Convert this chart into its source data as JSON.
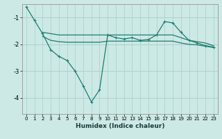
{
  "xlabel": "Humidex (Indice chaleur)",
  "background_color": "#cce9e5",
  "grid_color": "#aad4cf",
  "line_color": "#1e7b6e",
  "xlim": [
    -0.5,
    23.5
  ],
  "ylim": [
    -4.6,
    -0.5
  ],
  "yticks": [
    -4,
    -3,
    -2,
    -1
  ],
  "xticks": [
    0,
    1,
    2,
    3,
    4,
    5,
    6,
    7,
    8,
    9,
    10,
    11,
    12,
    13,
    14,
    15,
    16,
    17,
    18,
    19,
    20,
    21,
    22,
    23
  ],
  "line1_x": [
    0,
    1,
    2,
    3,
    4,
    5,
    6,
    7,
    8,
    9,
    10,
    11,
    12,
    13,
    14,
    15,
    16,
    17,
    18,
    19,
    20,
    21,
    22,
    23
  ],
  "line1_y": [
    -0.6,
    -1.1,
    -1.6,
    -2.2,
    -2.45,
    -2.6,
    -3.0,
    -3.55,
    -4.15,
    -3.7,
    -1.65,
    -1.75,
    -1.8,
    -1.75,
    -1.85,
    -1.82,
    -1.65,
    -1.15,
    -1.2,
    -1.55,
    -1.85,
    -1.95,
    -2.05,
    -2.1
  ],
  "line2_x": [
    2,
    3,
    4,
    5,
    6,
    7,
    8,
    9,
    10,
    11,
    12,
    13,
    14,
    15,
    16,
    17,
    18,
    19,
    20,
    21,
    22,
    23
  ],
  "line2_y": [
    -1.55,
    -1.6,
    -1.65,
    -1.65,
    -1.65,
    -1.65,
    -1.65,
    -1.65,
    -1.65,
    -1.65,
    -1.65,
    -1.65,
    -1.65,
    -1.65,
    -1.65,
    -1.65,
    -1.65,
    -1.75,
    -1.85,
    -1.9,
    -1.95,
    -2.05
  ],
  "line3_x": [
    2,
    3,
    4,
    5,
    6,
    7,
    8,
    9,
    10,
    11,
    12,
    13,
    14,
    15,
    16,
    17,
    18,
    19,
    20,
    21,
    22,
    23
  ],
  "line3_y": [
    -1.7,
    -1.85,
    -1.9,
    -1.92,
    -1.92,
    -1.92,
    -1.92,
    -1.92,
    -1.88,
    -1.88,
    -1.88,
    -1.88,
    -1.88,
    -1.88,
    -1.88,
    -1.88,
    -1.88,
    -1.95,
    -2.0,
    -2.02,
    -2.07,
    -2.12
  ]
}
